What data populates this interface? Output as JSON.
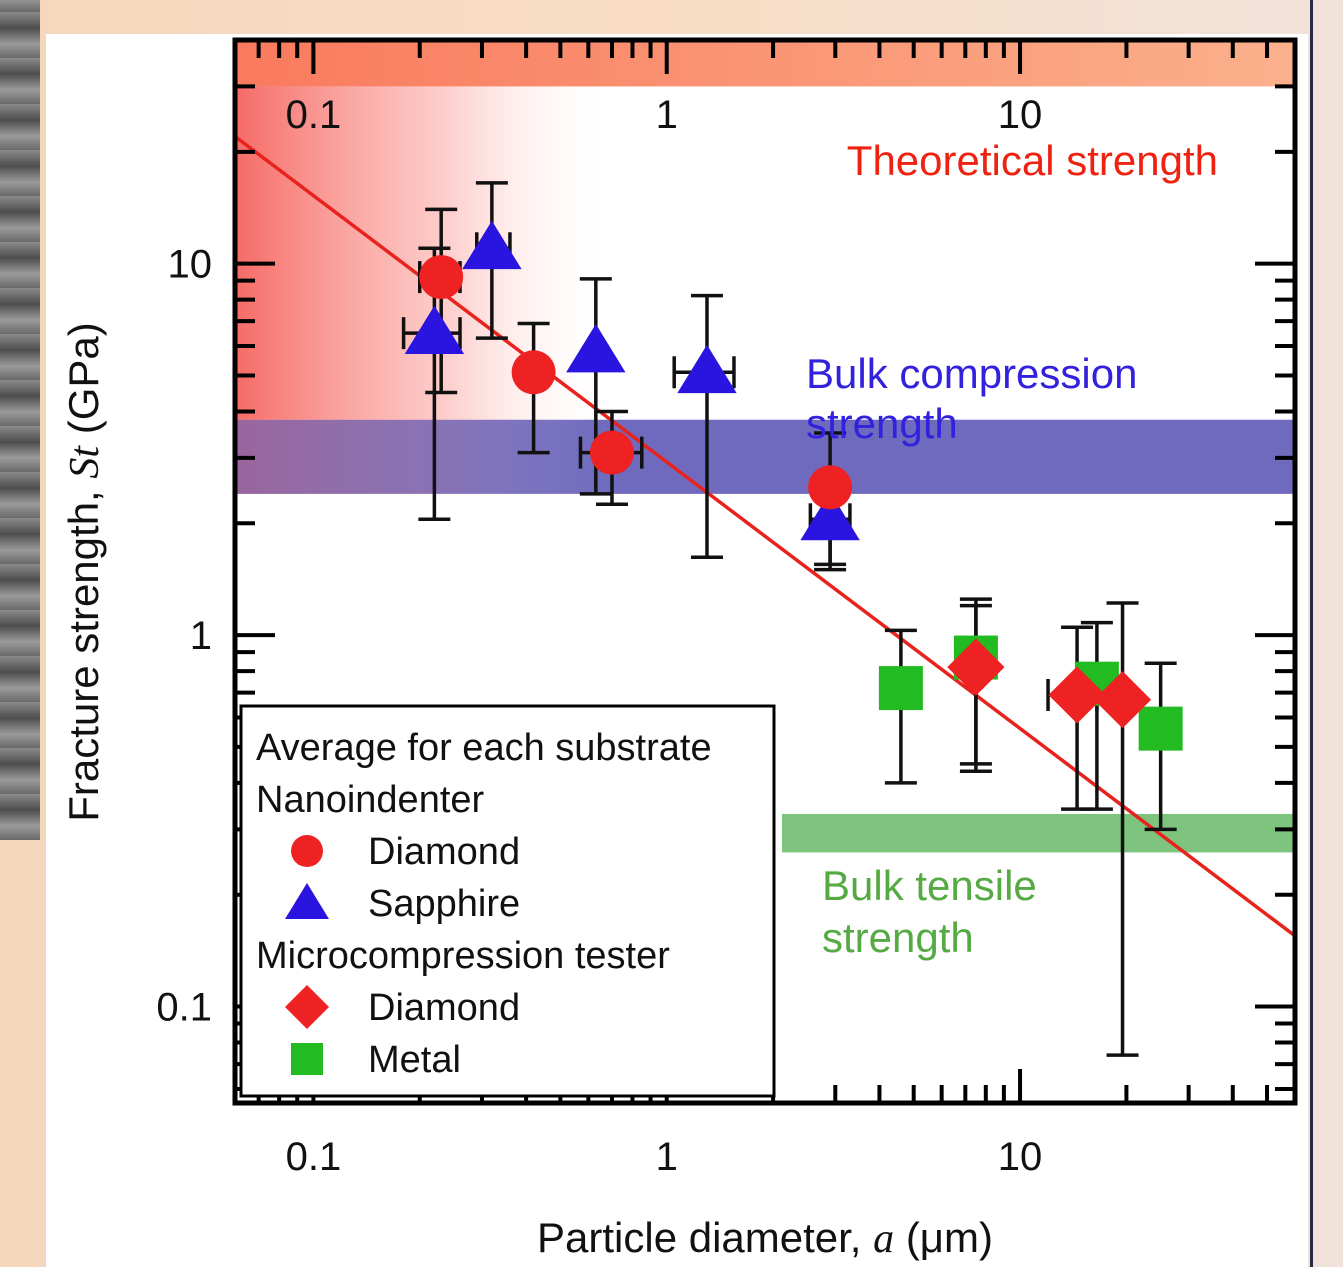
{
  "colors": {
    "diamond": "#ee2222",
    "sapphire": "#2a14e0",
    "metal": "#22bb22",
    "fit_line": "#e8221c",
    "theoretical_band": "#f98a6c",
    "compression_band": "#6f6abd",
    "tensile_band": "#7ec47e",
    "theoretical_text": "#ee2211",
    "compression_text": "#3322dd",
    "tensile_text": "#55aa44"
  },
  "chart_data": {
    "type": "scatter",
    "x_scale": "log",
    "y_scale": "log",
    "xlim": [
      0.06,
      60
    ],
    "ylim": [
      0.055,
      40
    ],
    "x_ticks": [
      {
        "value": 0.1,
        "label": "0.1"
      },
      {
        "value": 1,
        "label": "1"
      },
      {
        "value": 10,
        "label": "10"
      }
    ],
    "y_ticks": [
      {
        "value": 0.1,
        "label": "0.1"
      },
      {
        "value": 1,
        "label": "1"
      },
      {
        "value": 10,
        "label": "10"
      }
    ],
    "xlabel": {
      "prefix": "Particle diameter, ",
      "symbol": "a",
      "suffix": " (μm)"
    },
    "ylabel": {
      "prefix": "Fracture strength, ",
      "symbol": "St",
      "suffix": " (GPa)"
    },
    "bands": [
      {
        "name": "Theoretical strength",
        "y_range": [
          30,
          40
        ],
        "label_lines": [
          "Theoretical strength"
        ]
      },
      {
        "name": "Bulk compression strength",
        "y_range": [
          2.4,
          3.8
        ],
        "label_lines": [
          "Bulk compression",
          "strength"
        ]
      },
      {
        "name": "Bulk tensile strength",
        "y_range": [
          0.26,
          0.33
        ],
        "label_lines": [
          "Bulk tensile",
          "strength"
        ]
      }
    ],
    "fit_line": {
      "x": [
        0.06,
        60
      ],
      "y": [
        22,
        0.155
      ]
    },
    "series": [
      {
        "name": "Diamond",
        "group": "Nanoindenter",
        "marker": "circle",
        "points": [
          {
            "x": 0.23,
            "y": 9.2,
            "ylo": 4.5,
            "yhi": 14,
            "xlo": 0.2,
            "xhi": 0.26
          },
          {
            "x": 0.42,
            "y": 5.1,
            "ylo": 3.1,
            "yhi": 6.9
          },
          {
            "x": 0.7,
            "y": 3.1,
            "ylo": 2.25,
            "yhi": 4.0,
            "xlo": 0.57,
            "xhi": 0.85
          },
          {
            "x": 2.9,
            "y": 2.5,
            "ylo": 1.5,
            "yhi": 3.5
          }
        ]
      },
      {
        "name": "Sapphire",
        "group": "Nanoindenter",
        "marker": "triangle",
        "points": [
          {
            "x": 0.22,
            "y": 6.5,
            "ylo": 2.05,
            "yhi": 11,
            "xlo": 0.18,
            "xhi": 0.26
          },
          {
            "x": 0.32,
            "y": 11,
            "ylo": 6.3,
            "yhi": 16.5,
            "xlo": 0.29,
            "xhi": 0.36
          },
          {
            "x": 0.63,
            "y": 5.8,
            "ylo": 2.4,
            "yhi": 9.1
          },
          {
            "x": 1.3,
            "y": 5.1,
            "ylo": 1.62,
            "yhi": 8.2,
            "xlo": 1.05,
            "xhi": 1.55
          },
          {
            "x": 2.9,
            "y": 2.05,
            "ylo": 1.55,
            "yhi": 2.5,
            "xlo": 2.55,
            "xhi": 3.3
          }
        ]
      },
      {
        "name": "Diamond",
        "group": "Microcompression tester",
        "marker": "diamond",
        "points": [
          {
            "x": 7.5,
            "y": 0.82,
            "ylo": 0.45,
            "yhi": 1.2
          },
          {
            "x": 14.5,
            "y": 0.69,
            "ylo": 0.34,
            "yhi": 1.05,
            "xlo": 12,
            "xhi": 16.5
          },
          {
            "x": 19.5,
            "y": 0.67,
            "ylo": 0.074,
            "yhi": 1.22
          }
        ]
      },
      {
        "name": "Metal",
        "group": "Microcompression tester",
        "marker": "square",
        "points": [
          {
            "x": 4.6,
            "y": 0.72,
            "ylo": 0.4,
            "yhi": 1.03
          },
          {
            "x": 7.5,
            "y": 0.87,
            "ylo": 0.43,
            "yhi": 1.25
          },
          {
            "x": 16.5,
            "y": 0.74,
            "ylo": 0.34,
            "yhi": 1.08
          },
          {
            "x": 25,
            "y": 0.56,
            "ylo": 0.3,
            "yhi": 0.84
          }
        ]
      }
    ],
    "legend": {
      "placement": "bottom-left",
      "title": "Average for each substrate",
      "groups": [
        {
          "label": "Nanoindenter",
          "entries": [
            {
              "label": "Diamond",
              "marker": "circle",
              "color": "#ee2222"
            },
            {
              "label": "Sapphire",
              "marker": "triangle",
              "color": "#2a14e0"
            }
          ]
        },
        {
          "label": "Microcompression tester",
          "entries": [
            {
              "label": "Diamond",
              "marker": "diamond",
              "color": "#ee2222"
            },
            {
              "label": "Metal",
              "marker": "square",
              "color": "#22bb22"
            }
          ]
        }
      ]
    }
  }
}
